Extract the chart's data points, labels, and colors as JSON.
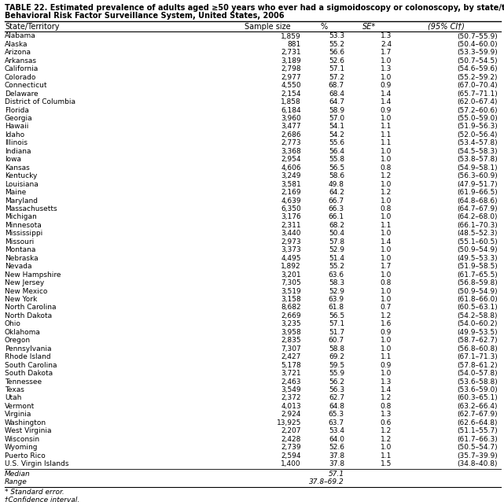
{
  "title_line1": "TABLE 22. Estimated prevalence of adults aged ≥50 years who ever had a sigmoidoscopy or colonoscopy, by state/territory —",
  "title_line2": "Behavioral Risk Factor Surveillance System, United States, 2006",
  "col_headers": [
    "State/Territory",
    "Sample size",
    "%",
    "SE*",
    "(95% CI†)"
  ],
  "rows": [
    [
      "Alabama",
      "1,859",
      "53.3",
      "1.3",
      "(50.7–55.9)"
    ],
    [
      "Alaska",
      "881",
      "55.2",
      "2.4",
      "(50.4–60.0)"
    ],
    [
      "Arizona",
      "2,731",
      "56.6",
      "1.7",
      "(53.3–59.9)"
    ],
    [
      "Arkansas",
      "3,189",
      "52.6",
      "1.0",
      "(50.7–54.5)"
    ],
    [
      "California",
      "2,798",
      "57.1",
      "1.3",
      "(54.6–59.6)"
    ],
    [
      "Colorado",
      "2,977",
      "57.2",
      "1.0",
      "(55.2–59.2)"
    ],
    [
      "Connecticut",
      "4,550",
      "68.7",
      "0.9",
      "(67.0–70.4)"
    ],
    [
      "Delaware",
      "2,154",
      "68.4",
      "1.4",
      "(65.7–71.1)"
    ],
    [
      "District of Columbia",
      "1,858",
      "64.7",
      "1.4",
      "(62.0–67.4)"
    ],
    [
      "Florida",
      "6,184",
      "58.9",
      "0.9",
      "(57.2–60.6)"
    ],
    [
      "Georgia",
      "3,960",
      "57.0",
      "1.0",
      "(55.0–59.0)"
    ],
    [
      "Hawaii",
      "3,477",
      "54.1",
      "1.1",
      "(51.9–56.3)"
    ],
    [
      "Idaho",
      "2,686",
      "54.2",
      "1.1",
      "(52.0–56.4)"
    ],
    [
      "Illinois",
      "2,773",
      "55.6",
      "1.1",
      "(53.4–57.8)"
    ],
    [
      "Indiana",
      "3,368",
      "56.4",
      "1.0",
      "(54.5–58.3)"
    ],
    [
      "Iowa",
      "2,954",
      "55.8",
      "1.0",
      "(53.8–57.8)"
    ],
    [
      "Kansas",
      "4,606",
      "56.5",
      "0.8",
      "(54.9–58.1)"
    ],
    [
      "Kentucky",
      "3,249",
      "58.6",
      "1.2",
      "(56.3–60.9)"
    ],
    [
      "Louisiana",
      "3,581",
      "49.8",
      "1.0",
      "(47.9–51.7)"
    ],
    [
      "Maine",
      "2,169",
      "64.2",
      "1.2",
      "(61.9–66.5)"
    ],
    [
      "Maryland",
      "4,639",
      "66.7",
      "1.0",
      "(64.8–68.6)"
    ],
    [
      "Massachusetts",
      "6,350",
      "66.3",
      "0.8",
      "(64.7–67.9)"
    ],
    [
      "Michigan",
      "3,176",
      "66.1",
      "1.0",
      "(64.2–68.0)"
    ],
    [
      "Minnesota",
      "2,311",
      "68.2",
      "1.1",
      "(66.1–70.3)"
    ],
    [
      "Mississippi",
      "3,440",
      "50.4",
      "1.0",
      "(48.5–52.3)"
    ],
    [
      "Missouri",
      "2,973",
      "57.8",
      "1.4",
      "(55.1–60.5)"
    ],
    [
      "Montana",
      "3,373",
      "52.9",
      "1.0",
      "(50.9–54.9)"
    ],
    [
      "Nebraska",
      "4,495",
      "51.4",
      "1.0",
      "(49.5–53.3)"
    ],
    [
      "Nevada",
      "1,892",
      "55.2",
      "1.7",
      "(51.9–58.5)"
    ],
    [
      "New Hampshire",
      "3,201",
      "63.6",
      "1.0",
      "(61.7–65.5)"
    ],
    [
      "New Jersey",
      "7,305",
      "58.3",
      "0.8",
      "(56.8–59.8)"
    ],
    [
      "New Mexico",
      "3,519",
      "52.9",
      "1.0",
      "(50.9–54.9)"
    ],
    [
      "New York",
      "3,158",
      "63.9",
      "1.0",
      "(61.8–66.0)"
    ],
    [
      "North Carolina",
      "8,682",
      "61.8",
      "0.7",
      "(60.5–63.1)"
    ],
    [
      "North Dakota",
      "2,669",
      "56.5",
      "1.2",
      "(54.2–58.8)"
    ],
    [
      "Ohio",
      "3,235",
      "57.1",
      "1.6",
      "(54.0–60.2)"
    ],
    [
      "Oklahoma",
      "3,958",
      "51.7",
      "0.9",
      "(49.9–53.5)"
    ],
    [
      "Oregon",
      "2,835",
      "60.7",
      "1.0",
      "(58.7–62.7)"
    ],
    [
      "Pennsylvania",
      "7,307",
      "58.8",
      "1.0",
      "(56.8–60.8)"
    ],
    [
      "Rhode Island",
      "2,427",
      "69.2",
      "1.1",
      "(67.1–71.3)"
    ],
    [
      "South Carolina",
      "5,178",
      "59.5",
      "0.9",
      "(57.8–61.2)"
    ],
    [
      "South Dakota",
      "3,721",
      "55.9",
      "1.0",
      "(54.0–57.8)"
    ],
    [
      "Tennessee",
      "2,463",
      "56.2",
      "1.3",
      "(53.6–58.8)"
    ],
    [
      "Texas",
      "3,549",
      "56.3",
      "1.4",
      "(53.6–59.0)"
    ],
    [
      "Utah",
      "2,372",
      "62.7",
      "1.2",
      "(60.3–65.1)"
    ],
    [
      "Vermont",
      "4,013",
      "64.8",
      "0.8",
      "(63.2–66.4)"
    ],
    [
      "Virginia",
      "2,924",
      "65.3",
      "1.3",
      "(62.7–67.9)"
    ],
    [
      "Washington",
      "13,925",
      "63.7",
      "0.6",
      "(62.6–64.8)"
    ],
    [
      "West Virginia",
      "2,207",
      "53.4",
      "1.2",
      "(51.1–55.7)"
    ],
    [
      "Wisconsin",
      "2,428",
      "64.0",
      "1.2",
      "(61.7–66.3)"
    ],
    [
      "Wyoming",
      "2,739",
      "52.6",
      "1.0",
      "(50.5–54.7)"
    ],
    [
      "Puerto Rico",
      "2,594",
      "37.8",
      "1.1",
      "(35.7–39.9)"
    ],
    [
      "U.S. Virgin Islands",
      "1,400",
      "37.8",
      "1.5",
      "(34.8–40.8)"
    ]
  ],
  "footer_rows": [
    [
      "Median",
      "",
      "57.1",
      "",
      ""
    ],
    [
      "Range",
      "",
      "37.8–69.2",
      "",
      ""
    ]
  ],
  "footnotes": [
    "* Standard error.",
    "†Confidence interval."
  ],
  "bg_color": "#ffffff",
  "text_color": "#000000",
  "title_font_size": 7.0,
  "header_font_size": 7.0,
  "row_font_size": 6.5
}
